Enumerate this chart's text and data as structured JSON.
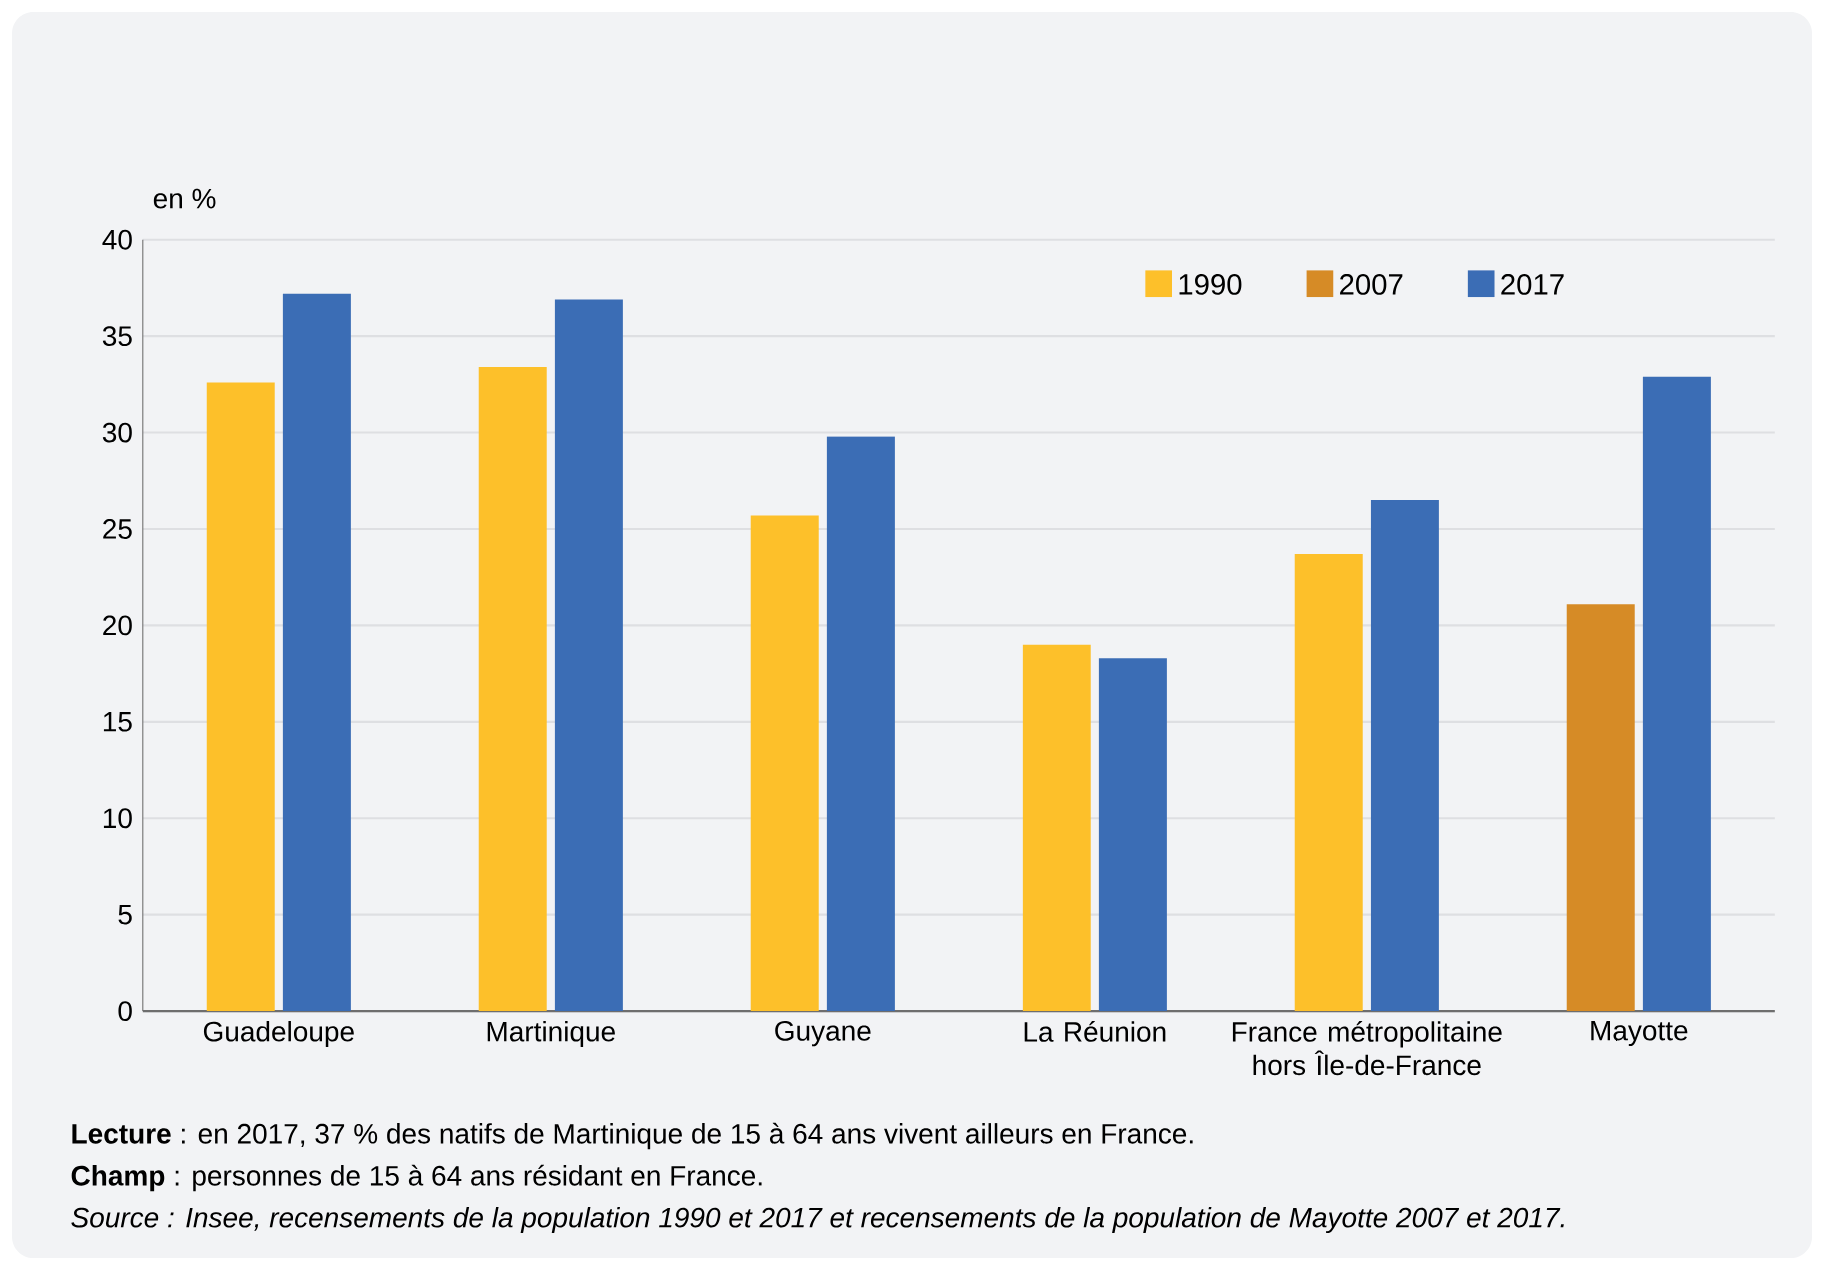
{
  "chart_data": {
    "type": "bar",
    "ylabel": "en %",
    "categories": [
      "Guadeloupe",
      "Martinique",
      "Guyane",
      "La Réunion",
      "France métropolitaine hors Île-de-France",
      "Mayotte"
    ],
    "series": [
      {
        "name": "1990",
        "color": "#fdc02a",
        "values": [
          32.6,
          33.4,
          25.7,
          19.0,
          23.7,
          null
        ]
      },
      {
        "name": "2007",
        "color": "#d68b26",
        "values": [
          null,
          null,
          null,
          null,
          null,
          21.1
        ]
      },
      {
        "name": "2017",
        "color": "#3b6db5",
        "values": [
          37.2,
          36.9,
          29.8,
          18.3,
          26.5,
          32.9
        ]
      }
    ],
    "ylim": [
      0,
      40
    ],
    "yticks": [
      0,
      5,
      10,
      15,
      20,
      25,
      30,
      35,
      40
    ],
    "grid": "y",
    "legend": "top right",
    "annotations": [
      "**Lecture** : en 2017, 37 % des natifs de Martinique de 15 à 64 ans vivent ailleurs en France.",
      "**Champ** : personnes de 15 à 64 ans résidant en France.",
      "*Source : Insee, recensements de la population 1990 et 2017 et recensements de la population de Mayotte 2007 et 2017.*"
    ]
  }
}
